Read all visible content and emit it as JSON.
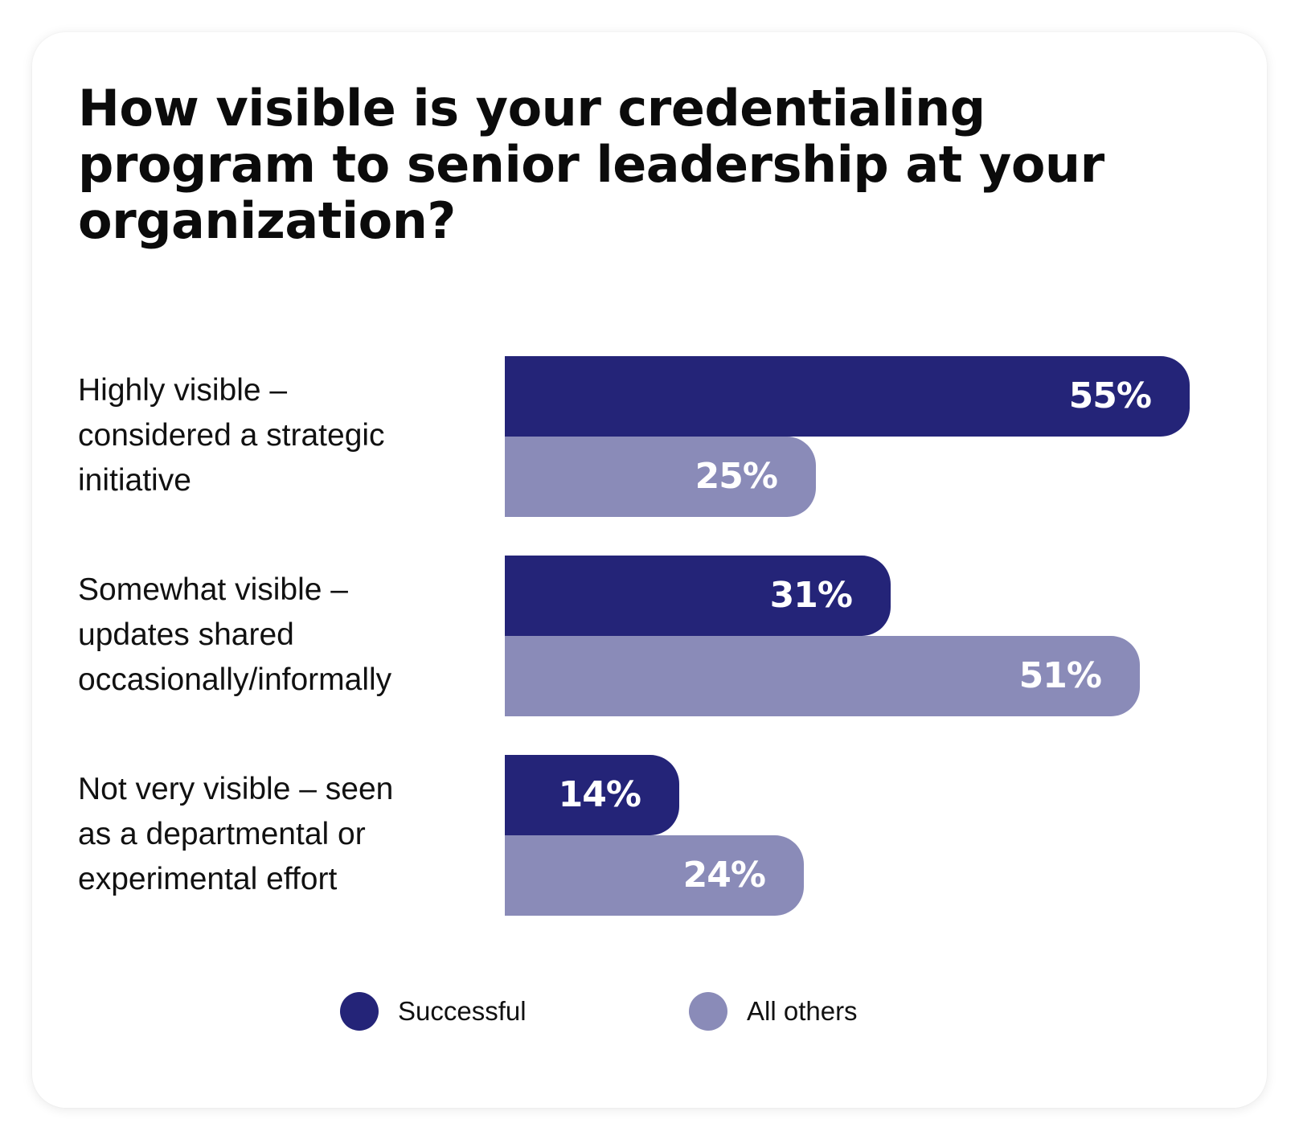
{
  "chart_data": {
    "type": "bar",
    "orientation": "horizontal",
    "title": "How visible is your credentialing program to senior leadership at your organization?",
    "categories": [
      [
        "Highly visible –",
        "considered a strategic",
        "initiative"
      ],
      [
        "Somewhat visible –",
        "updates shared",
        "occasionally/informally"
      ],
      [
        "Not very visible – seen",
        "as a departmental or",
        "experimental effort"
      ]
    ],
    "series": [
      {
        "name": "Successful",
        "color": "#242478",
        "values": [
          55,
          31,
          14
        ],
        "labels": [
          "55%",
          "31%",
          "14%"
        ]
      },
      {
        "name": "All others",
        "color": "#8a8bb8",
        "values": [
          25,
          51,
          24
        ],
        "labels": [
          "25%",
          "51%",
          "24%"
        ]
      }
    ],
    "unit": "%",
    "xlim": [
      0,
      55
    ],
    "grid": false,
    "axes_visible": false,
    "legend_position": "bottom"
  }
}
